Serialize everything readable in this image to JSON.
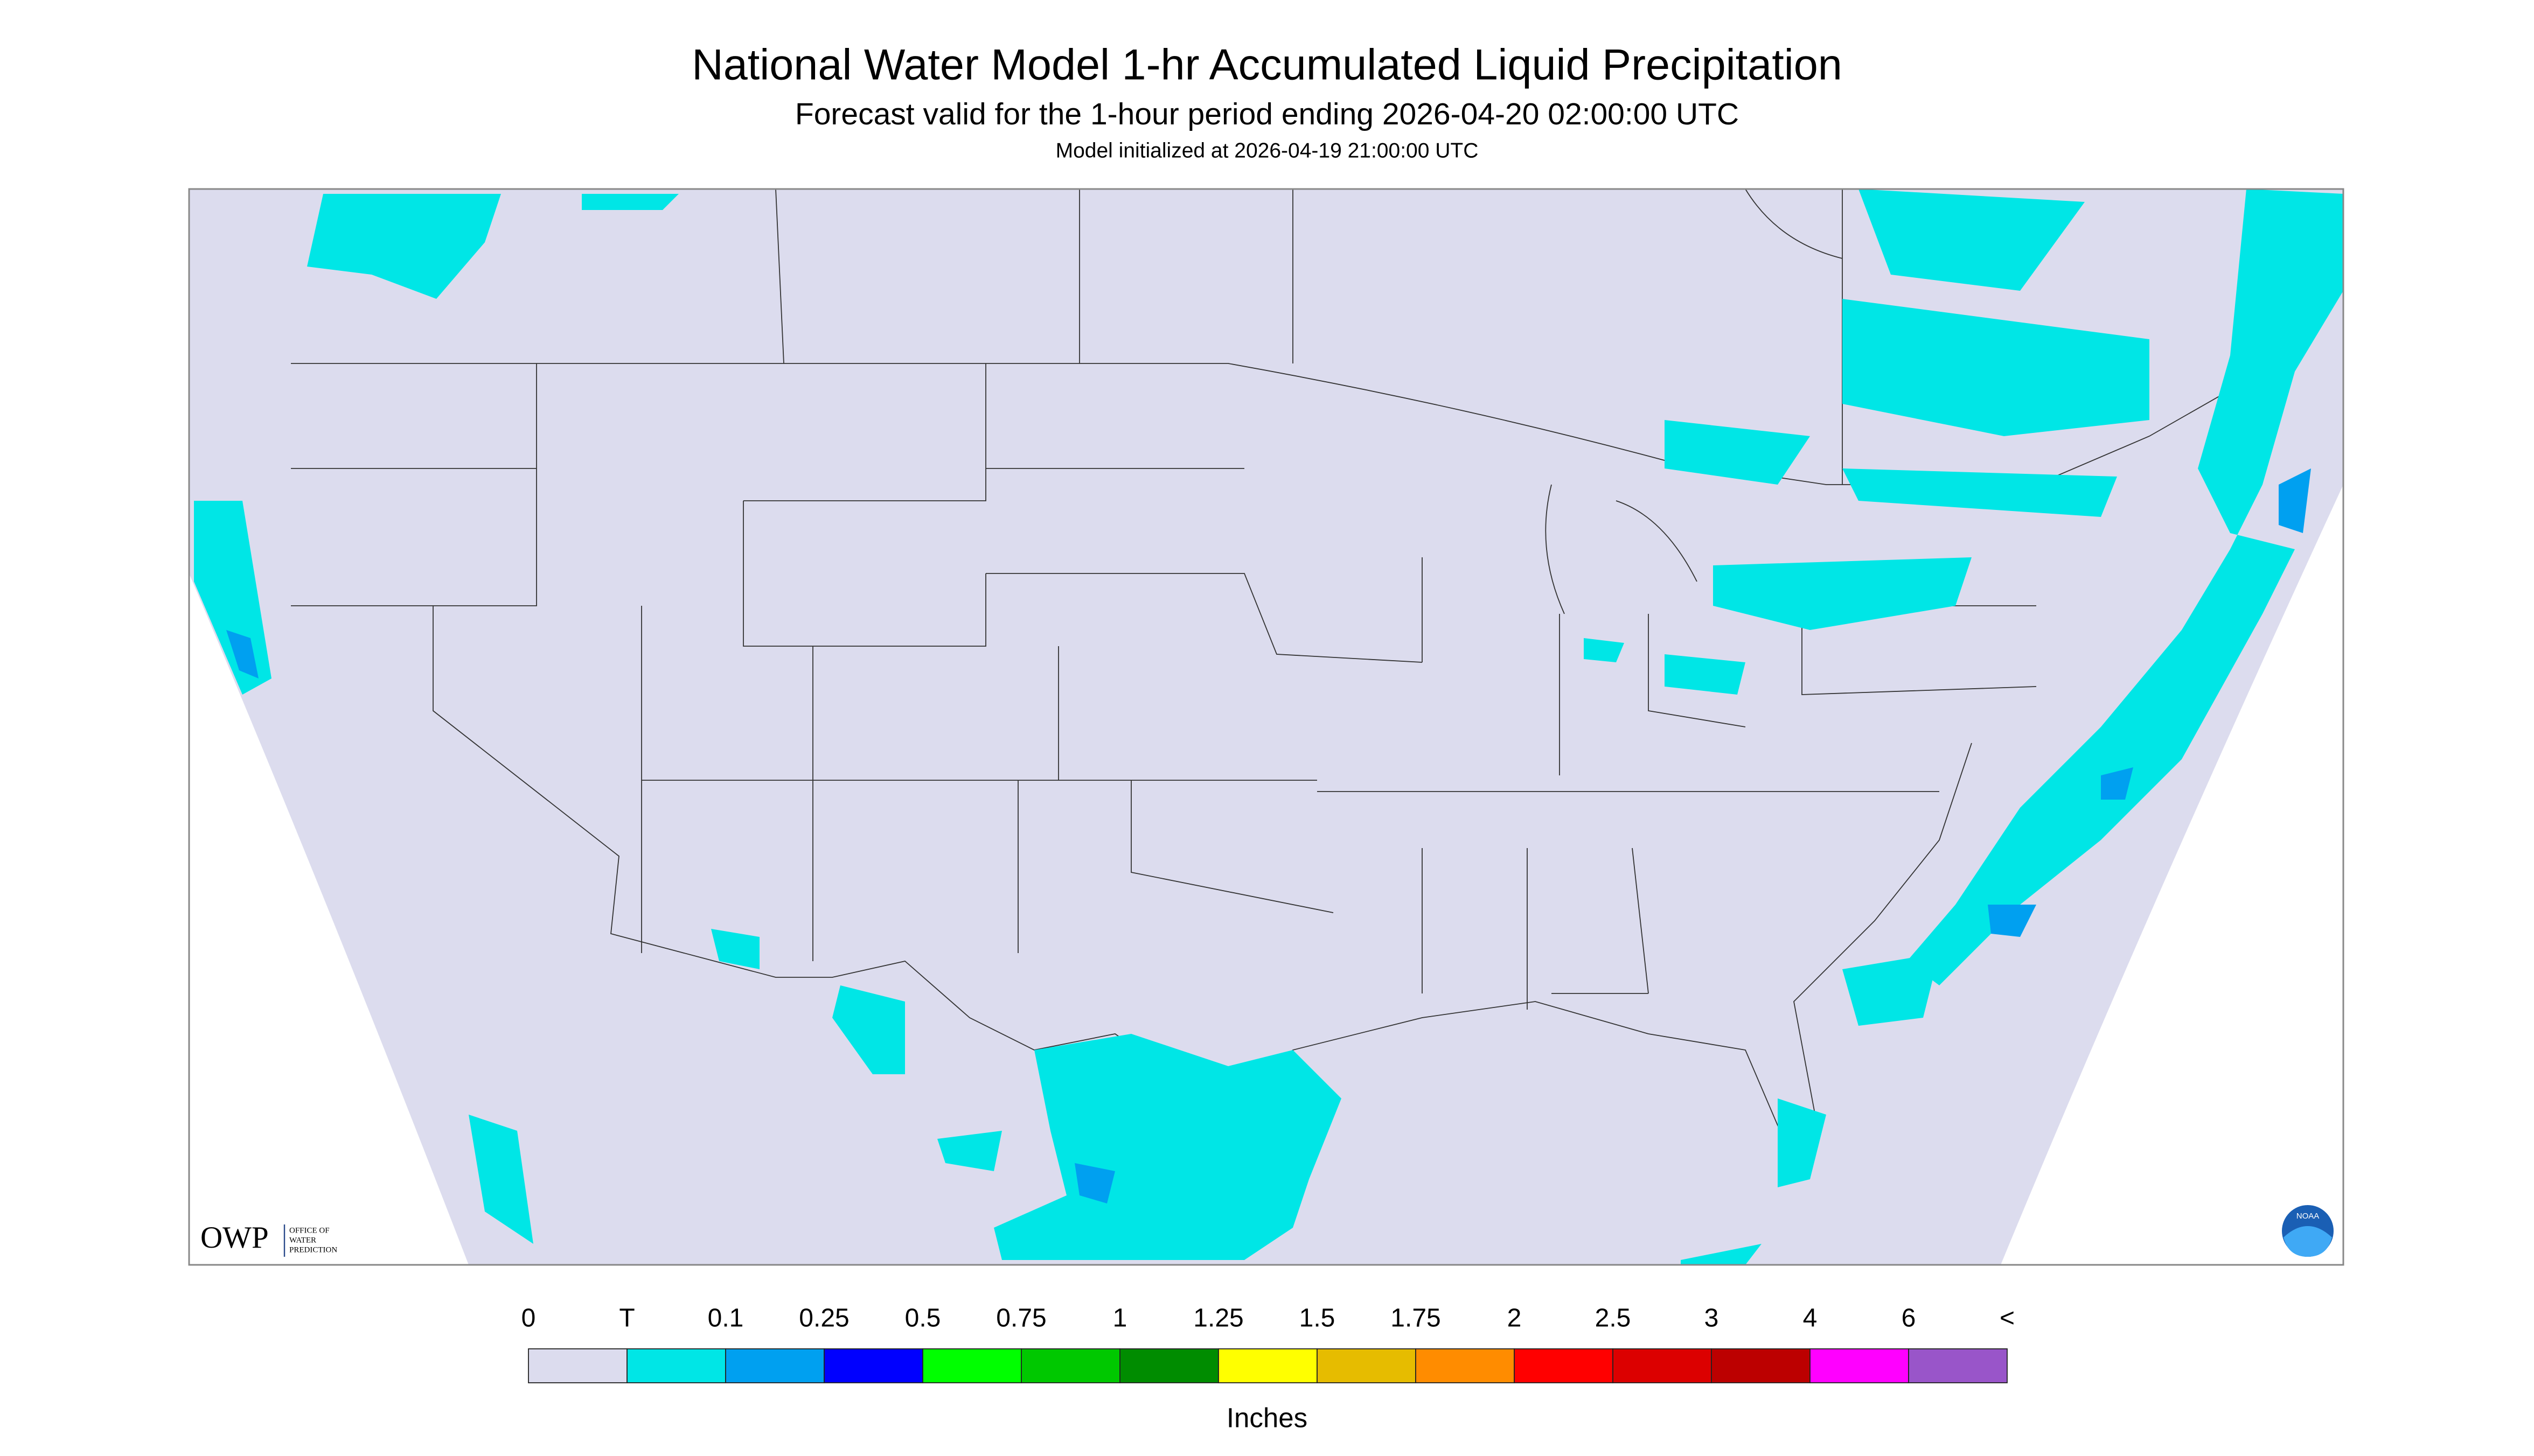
{
  "header": {
    "title": "National Water Model 1-hr Accumulated Liquid Precipitation",
    "subtitle": "Forecast valid for the 1-hour period ending 2026-04-20 02:00:00 UTC",
    "note": "Model initialized at 2026-04-19 21:00:00 UTC"
  },
  "logo": {
    "name": "OWP",
    "text": [
      "OFFICE OF",
      "WATER",
      "PREDICTION"
    ],
    "badge": "NOAA"
  },
  "legend": {
    "labels": [
      "0",
      "T",
      "0.1",
      "0.25",
      "0.5",
      "0.75",
      "1",
      "1.25",
      "1.5",
      "1.75",
      "2",
      "2.5",
      "3",
      "4",
      "6",
      "<"
    ],
    "colors": [
      "#dcdcee",
      "#00e6e6",
      "#00a0f0",
      "#0000ff",
      "#00ff00",
      "#00c800",
      "#008c00",
      "#ffff00",
      "#e6bc00",
      "#ff8c00",
      "#ff0000",
      "#dc0000",
      "#bc0000",
      "#ff00ff",
      "#9955c9"
    ],
    "unit": "Inches"
  }
}
